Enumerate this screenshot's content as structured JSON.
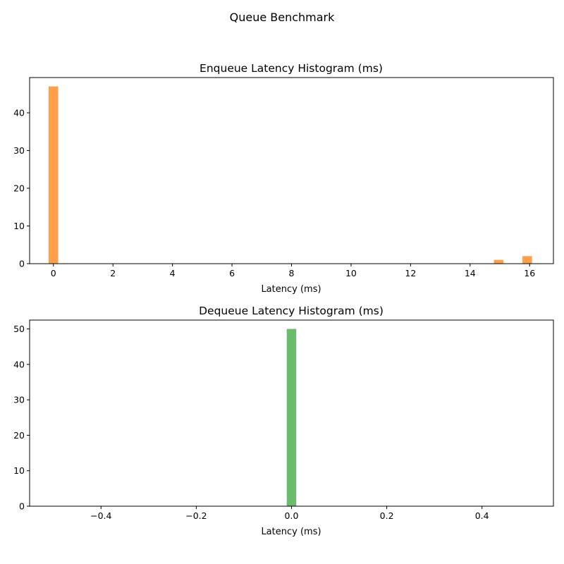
{
  "figure": {
    "suptitle": "Queue Benchmark"
  },
  "chart_data": [
    {
      "type": "bar",
      "title": "Enqueue Latency Histogram (ms)",
      "xlabel": "Latency (ms)",
      "ylabel": "",
      "color": "#ff9f4a",
      "xlim": [
        -0.8,
        16.8
      ],
      "ylim": [
        0,
        49.35
      ],
      "xticks": [
        0,
        2,
        4,
        6,
        8,
        10,
        12,
        14,
        16
      ],
      "yticks": [
        0,
        10,
        20,
        30,
        40
      ],
      "bin_width": 0.32,
      "bins": [
        {
          "x": 0.0,
          "count": 47
        },
        {
          "x": 14.96,
          "count": 1
        },
        {
          "x": 15.92,
          "count": 2
        }
      ],
      "grid": false,
      "legend": "none"
    },
    {
      "type": "bar",
      "title": "Dequeue Latency Histogram (ms)",
      "xlabel": "Latency (ms)",
      "ylabel": "",
      "color": "#6abb6b",
      "xlim": [
        -0.55,
        0.55
      ],
      "ylim": [
        0,
        52.5
      ],
      "xticks": [
        -0.4,
        -0.2,
        0.0,
        0.2,
        0.4
      ],
      "xticklabels": [
        "−0.4",
        "−0.2",
        "0.0",
        "0.2",
        "0.4"
      ],
      "yticks": [
        0,
        10,
        20,
        30,
        40,
        50
      ],
      "bin_width": 0.02,
      "bins": [
        {
          "x": 0.0,
          "count": 50
        }
      ],
      "grid": false,
      "legend": "none"
    }
  ]
}
